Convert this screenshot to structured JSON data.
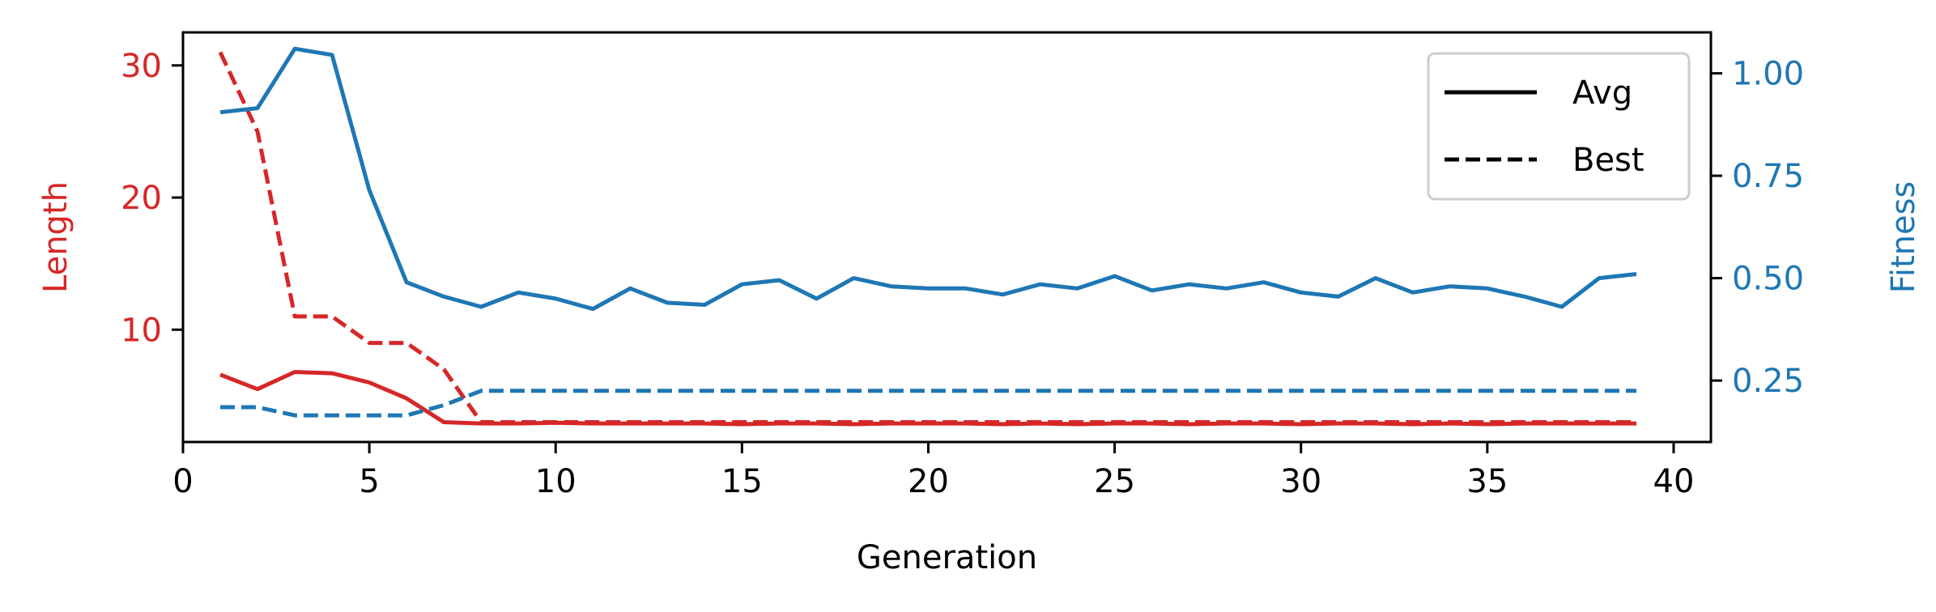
{
  "chart_data": {
    "type": "line",
    "xlabel": "Generation",
    "ylabel_left": "Length",
    "ylabel_right": "Fitness",
    "xlim": [
      0,
      41
    ],
    "ylim_left": [
      1.5,
      32.5
    ],
    "ylim_right": [
      0.1,
      1.1
    ],
    "xticks": [
      0,
      5,
      10,
      15,
      20,
      25,
      30,
      35,
      40
    ],
    "yticks_left": [
      10,
      20,
      30
    ],
    "yticks_right": [
      "0.25",
      "0.50",
      "0.75",
      "1.00"
    ],
    "grid": false,
    "legend_position": "top-right",
    "legend": [
      {
        "label": "Avg",
        "style": "solid"
      },
      {
        "label": "Best",
        "style": "dashed"
      }
    ],
    "colors": {
      "length": "#d62728",
      "fitness": "#1f77b4",
      "axis": "#000000"
    },
    "x": [
      1,
      2,
      3,
      4,
      5,
      6,
      7,
      8,
      9,
      10,
      11,
      12,
      13,
      14,
      15,
      16,
      17,
      18,
      19,
      20,
      21,
      22,
      23,
      24,
      25,
      26,
      27,
      28,
      29,
      30,
      31,
      32,
      33,
      34,
      35,
      36,
      37,
      38,
      39
    ],
    "series": [
      {
        "name": "Avg",
        "axis": "left",
        "color": "#d62728",
        "style": "solid",
        "values": [
          6.6,
          5.5,
          6.8,
          6.7,
          6.0,
          4.8,
          3.0,
          2.9,
          2.9,
          2.95,
          2.9,
          2.9,
          2.9,
          2.9,
          2.85,
          2.9,
          2.9,
          2.85,
          2.9,
          2.9,
          2.9,
          2.85,
          2.9,
          2.85,
          2.9,
          2.9,
          2.85,
          2.9,
          2.9,
          2.85,
          2.9,
          2.9,
          2.85,
          2.9,
          2.85,
          2.9,
          2.9,
          2.9,
          2.9
        ]
      },
      {
        "name": "Best",
        "axis": "left",
        "color": "#d62728",
        "style": "dashed",
        "values": [
          31.0,
          25.0,
          11.0,
          11.0,
          9.0,
          9.0,
          7.0,
          3.0,
          3.0,
          3.0,
          3.0,
          3.0,
          3.0,
          3.0,
          3.0,
          3.0,
          3.0,
          3.0,
          3.0,
          3.0,
          3.0,
          3.0,
          3.0,
          3.0,
          3.0,
          3.0,
          3.0,
          3.0,
          3.0,
          3.0,
          3.0,
          3.0,
          3.0,
          3.0,
          3.0,
          3.0,
          3.0,
          3.0,
          3.0
        ]
      },
      {
        "name": "Avg",
        "axis": "right",
        "color": "#1f77b4",
        "style": "solid",
        "values": [
          0.905,
          0.915,
          1.06,
          1.045,
          0.715,
          0.49,
          0.455,
          0.43,
          0.465,
          0.45,
          0.425,
          0.475,
          0.44,
          0.435,
          0.485,
          0.495,
          0.45,
          0.5,
          0.48,
          0.475,
          0.475,
          0.46,
          0.485,
          0.475,
          0.505,
          0.47,
          0.485,
          0.475,
          0.49,
          0.465,
          0.455,
          0.5,
          0.465,
          0.48,
          0.475,
          0.455,
          0.43,
          0.5,
          0.51
        ]
      },
      {
        "name": "Best",
        "axis": "right",
        "color": "#1f77b4",
        "style": "dashed",
        "values": [
          0.185,
          0.185,
          0.165,
          0.165,
          0.165,
          0.165,
          0.19,
          0.225,
          0.225,
          0.225,
          0.225,
          0.225,
          0.225,
          0.225,
          0.225,
          0.225,
          0.225,
          0.225,
          0.225,
          0.225,
          0.225,
          0.225,
          0.225,
          0.225,
          0.225,
          0.225,
          0.225,
          0.225,
          0.225,
          0.225,
          0.225,
          0.225,
          0.225,
          0.225,
          0.225,
          0.225,
          0.225,
          0.225,
          0.225
        ]
      }
    ]
  }
}
